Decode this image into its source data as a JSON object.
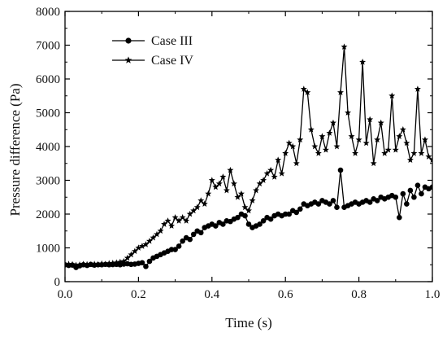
{
  "chart_data": {
    "type": "line",
    "title": "",
    "xlabel": "Time (s)",
    "ylabel": "Pressure difference (Pa)",
    "xlim": [
      0.0,
      1.0
    ],
    "ylim": [
      0,
      8000
    ],
    "xticks": [
      0.0,
      0.2,
      0.4,
      0.6,
      0.8,
      1.0
    ],
    "xtick_labels": [
      "0.0",
      "0.2",
      "0.4",
      "0.6",
      "0.8",
      "1.0"
    ],
    "yticks": [
      0,
      1000,
      2000,
      3000,
      4000,
      5000,
      6000,
      7000,
      8000
    ],
    "ytick_labels": [
      "0",
      "1000",
      "2000",
      "3000",
      "4000",
      "5000",
      "6000",
      "7000",
      "8000"
    ],
    "grid": false,
    "legend_position": "top-left",
    "series": [
      {
        "name": "Case III",
        "marker": "circle",
        "color": "#000000",
        "x": [
          0.0,
          0.01,
          0.02,
          0.03,
          0.04,
          0.05,
          0.06,
          0.07,
          0.08,
          0.09,
          0.1,
          0.11,
          0.12,
          0.13,
          0.14,
          0.15,
          0.16,
          0.17,
          0.18,
          0.19,
          0.2,
          0.21,
          0.22,
          0.23,
          0.24,
          0.25,
          0.26,
          0.27,
          0.28,
          0.29,
          0.3,
          0.31,
          0.32,
          0.33,
          0.34,
          0.35,
          0.36,
          0.37,
          0.38,
          0.39,
          0.4,
          0.41,
          0.42,
          0.43,
          0.44,
          0.45,
          0.46,
          0.47,
          0.48,
          0.49,
          0.5,
          0.51,
          0.52,
          0.53,
          0.54,
          0.55,
          0.56,
          0.57,
          0.58,
          0.59,
          0.6,
          0.61,
          0.62,
          0.63,
          0.64,
          0.65,
          0.66,
          0.67,
          0.68,
          0.69,
          0.7,
          0.71,
          0.72,
          0.73,
          0.74,
          0.75,
          0.76,
          0.77,
          0.78,
          0.79,
          0.8,
          0.81,
          0.82,
          0.83,
          0.84,
          0.85,
          0.86,
          0.87,
          0.88,
          0.89,
          0.9,
          0.91,
          0.92,
          0.93,
          0.94,
          0.95,
          0.96,
          0.97,
          0.98,
          0.99,
          1.0
        ],
        "y": [
          500,
          480,
          490,
          420,
          470,
          500,
          480,
          510,
          490,
          500,
          500,
          510,
          500,
          505,
          510,
          500,
          520,
          530,
          510,
          520,
          540,
          560,
          450,
          600,
          700,
          750,
          800,
          850,
          900,
          950,
          950,
          1050,
          1200,
          1300,
          1250,
          1400,
          1500,
          1450,
          1600,
          1650,
          1700,
          1650,
          1750,
          1700,
          1800,
          1780,
          1850,
          1900,
          2000,
          1950,
          1700,
          1600,
          1650,
          1700,
          1800,
          1900,
          1850,
          1950,
          2000,
          1950,
          2000,
          2000,
          2100,
          2050,
          2150,
          2300,
          2250,
          2300,
          2350,
          2300,
          2400,
          2350,
          2300,
          2400,
          2200,
          3300,
          2200,
          2250,
          2300,
          2350,
          2300,
          2350,
          2400,
          2350,
          2450,
          2400,
          2500,
          2450,
          2500,
          2550,
          2500,
          1900,
          2600,
          2300,
          2700,
          2500,
          2850,
          2600,
          2800,
          2750,
          2800
        ]
      },
      {
        "name": "Case IV",
        "marker": "star",
        "color": "#000000",
        "x": [
          0.0,
          0.01,
          0.02,
          0.03,
          0.04,
          0.05,
          0.06,
          0.07,
          0.08,
          0.09,
          0.1,
          0.11,
          0.12,
          0.13,
          0.14,
          0.15,
          0.16,
          0.17,
          0.18,
          0.19,
          0.2,
          0.21,
          0.22,
          0.23,
          0.24,
          0.25,
          0.26,
          0.27,
          0.28,
          0.29,
          0.3,
          0.31,
          0.32,
          0.33,
          0.34,
          0.35,
          0.36,
          0.37,
          0.38,
          0.39,
          0.4,
          0.41,
          0.42,
          0.43,
          0.44,
          0.45,
          0.46,
          0.47,
          0.48,
          0.49,
          0.5,
          0.51,
          0.52,
          0.53,
          0.54,
          0.55,
          0.56,
          0.57,
          0.58,
          0.59,
          0.6,
          0.61,
          0.62,
          0.63,
          0.64,
          0.65,
          0.66,
          0.67,
          0.68,
          0.69,
          0.7,
          0.71,
          0.72,
          0.73,
          0.74,
          0.75,
          0.76,
          0.77,
          0.78,
          0.79,
          0.8,
          0.81,
          0.82,
          0.83,
          0.84,
          0.85,
          0.86,
          0.87,
          0.88,
          0.89,
          0.9,
          0.91,
          0.92,
          0.93,
          0.94,
          0.95,
          0.96,
          0.97,
          0.98,
          0.99,
          1.0
        ],
        "y": [
          500,
          520,
          510,
          490,
          500,
          520,
          510,
          500,
          520,
          510,
          530,
          520,
          540,
          550,
          560,
          580,
          600,
          700,
          800,
          900,
          1000,
          1050,
          1100,
          1200,
          1300,
          1400,
          1500,
          1700,
          1800,
          1650,
          1900,
          1800,
          1900,
          1800,
          2000,
          2100,
          2200,
          2400,
          2300,
          2600,
          3000,
          2800,
          2900,
          3100,
          2700,
          3300,
          2900,
          2500,
          2600,
          2200,
          2100,
          2400,
          2700,
          2900,
          3000,
          3200,
          3300,
          3100,
          3600,
          3200,
          3800,
          4100,
          4000,
          3500,
          4200,
          5700,
          5600,
          4500,
          4000,
          3800,
          4300,
          3900,
          4400,
          4700,
          4000,
          5600,
          6950,
          5000,
          4300,
          3800,
          4200,
          6500,
          4100,
          4800,
          3500,
          4200,
          4700,
          3800,
          3900,
          5500,
          3900,
          4300,
          4500,
          4100,
          3600,
          3800,
          5700,
          3800,
          4200,
          3700,
          3600
        ]
      }
    ]
  }
}
